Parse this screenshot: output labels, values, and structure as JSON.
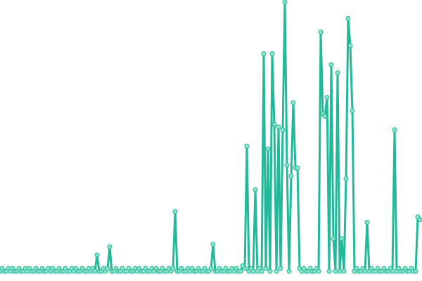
{
  "chart_data": {
    "type": "line",
    "color": "#22b99a",
    "marker_color": "#8de3c9",
    "markers": true,
    "x": [
      0,
      1,
      2,
      3,
      4,
      5,
      6,
      7,
      8,
      9,
      10,
      11,
      12,
      13,
      14,
      15,
      16,
      17,
      18,
      19,
      20,
      21,
      22,
      23,
      24,
      25,
      26,
      27,
      28,
      29,
      30,
      31,
      32,
      33,
      34,
      35,
      36,
      37,
      38,
      39,
      40,
      41,
      42,
      43,
      44,
      45,
      46,
      47,
      48,
      49,
      50,
      51,
      52,
      53,
      54,
      55,
      56,
      57,
      58,
      59,
      60,
      61,
      62,
      63,
      64,
      65,
      66,
      67,
      68,
      69,
      70,
      71,
      72,
      73,
      74,
      75,
      76,
      77,
      78,
      79,
      80,
      81,
      82,
      83,
      84,
      85,
      86,
      87,
      88,
      89,
      90,
      91,
      92,
      93,
      94,
      95,
      96,
      97,
      98,
      99,
      100,
      101,
      102,
      103,
      104,
      105,
      106,
      107,
      108,
      109,
      110,
      111,
      112,
      113,
      114,
      115,
      116,
      117,
      118,
      119,
      120,
      121,
      122,
      123,
      124,
      125,
      126,
      127,
      128,
      129,
      130,
      131,
      132,
      133,
      134,
      135,
      136,
      137,
      138,
      139,
      140,
      141,
      142,
      143,
      144,
      145,
      146,
      147,
      148,
      149,
      150,
      151,
      152,
      153,
      154,
      155,
      156,
      157,
      158,
      159,
      160,
      161,
      162,
      163,
      164,
      165,
      166,
      167,
      168,
      169,
      170,
      171,
      172,
      173,
      174,
      175,
      176,
      177,
      178,
      179,
      180,
      181,
      182,
      183,
      184,
      185,
      186,
      187,
      188,
      189,
      190,
      191,
      192,
      193,
      194,
      195,
      196,
      197,
      198,
      199
    ],
    "values": [
      1,
      2,
      1,
      1,
      2,
      1,
      2,
      1,
      1,
      2,
      1,
      1,
      2,
      1,
      2,
      1,
      1,
      2,
      1,
      1,
      2,
      1,
      1,
      2,
      1,
      2,
      1,
      1,
      2,
      1,
      1,
      2,
      1,
      1,
      2,
      1,
      2,
      1,
      1,
      2,
      1,
      1,
      2,
      1,
      2,
      1,
      7,
      1,
      1,
      2,
      1,
      2,
      10,
      1,
      1,
      2,
      1,
      1,
      2,
      1,
      1,
      2,
      1,
      1,
      2,
      1,
      2,
      1,
      1,
      2,
      1,
      1,
      2,
      1,
      2,
      1,
      1,
      2,
      1,
      1,
      2,
      1,
      2,
      23,
      1,
      1,
      2,
      1,
      1,
      2,
      1,
      2,
      1,
      1,
      2,
      1,
      1,
      2,
      1,
      1,
      2,
      11,
      1,
      1,
      2,
      1,
      1,
      2,
      1,
      1,
      2,
      1,
      2,
      1,
      1,
      3,
      2,
      47,
      1,
      2,
      1,
      31,
      1,
      2,
      1,
      81,
      2,
      46,
      1,
      81,
      55,
      1,
      54,
      2,
      53,
      100,
      40,
      1,
      36,
      63,
      39,
      39,
      2,
      1,
      2,
      1,
      1,
      2,
      1,
      1,
      2,
      1,
      89,
      59,
      58,
      65,
      1,
      77,
      13,
      1,
      74,
      1,
      13,
      1,
      35,
      94,
      84,
      60,
      1,
      2,
      1,
      1,
      2,
      1,
      19,
      1,
      2,
      1,
      1,
      2,
      1,
      1,
      2,
      1,
      1,
      2,
      1,
      53,
      1,
      2,
      1,
      1,
      2,
      1,
      1,
      2,
      1,
      1,
      21,
      20
    ],
    "xlim": [
      0,
      199
    ],
    "ylim": [
      0,
      100
    ]
  }
}
